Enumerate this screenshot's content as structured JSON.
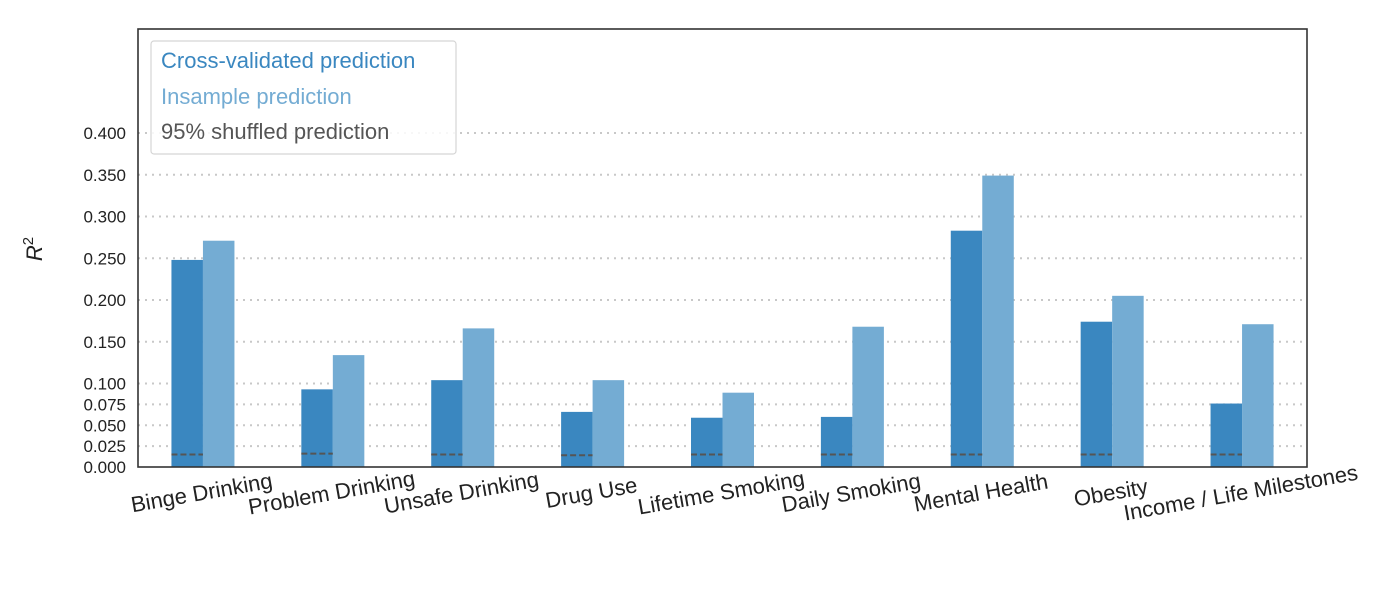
{
  "chart_data": {
    "type": "bar",
    "categories": [
      "Binge Drinking",
      "Problem Drinking",
      "Unsafe Drinking",
      "Drug Use",
      "Lifetime Smoking",
      "Daily Smoking",
      "Mental Health",
      "Obesity",
      "Income / Life Milestones"
    ],
    "series": [
      {
        "name": "Cross-validated prediction",
        "color": "#3a87c0",
        "values": [
          0.248,
          0.093,
          0.104,
          0.066,
          0.059,
          0.06,
          0.283,
          0.174,
          0.076
        ]
      },
      {
        "name": "Insample prediction",
        "color": "#74acd3",
        "values": [
          0.271,
          0.134,
          0.166,
          0.104,
          0.089,
          0.168,
          0.349,
          0.205,
          0.171
        ]
      },
      {
        "name": "95% shuffled prediction",
        "color": "#555555",
        "values": [
          0.015,
          0.016,
          0.015,
          0.014,
          0.015,
          0.015,
          0.015,
          0.015,
          0.015
        ]
      }
    ],
    "ylabel": "R²",
    "ylabel_main": "R",
    "ylabel_sup": "2",
    "ylim": [
      0,
      0.4
    ],
    "yticks": [
      0.0,
      0.025,
      0.05,
      0.075,
      0.1,
      0.15,
      0.2,
      0.25,
      0.3,
      0.35,
      0.4
    ],
    "ytick_labels": [
      "0.000",
      "0.025",
      "0.050",
      "0.075",
      "0.100",
      "0.150",
      "0.200",
      "0.250",
      "0.300",
      "0.350",
      "0.400"
    ],
    "grid": true,
    "legend": {
      "placement": "top-left"
    }
  }
}
